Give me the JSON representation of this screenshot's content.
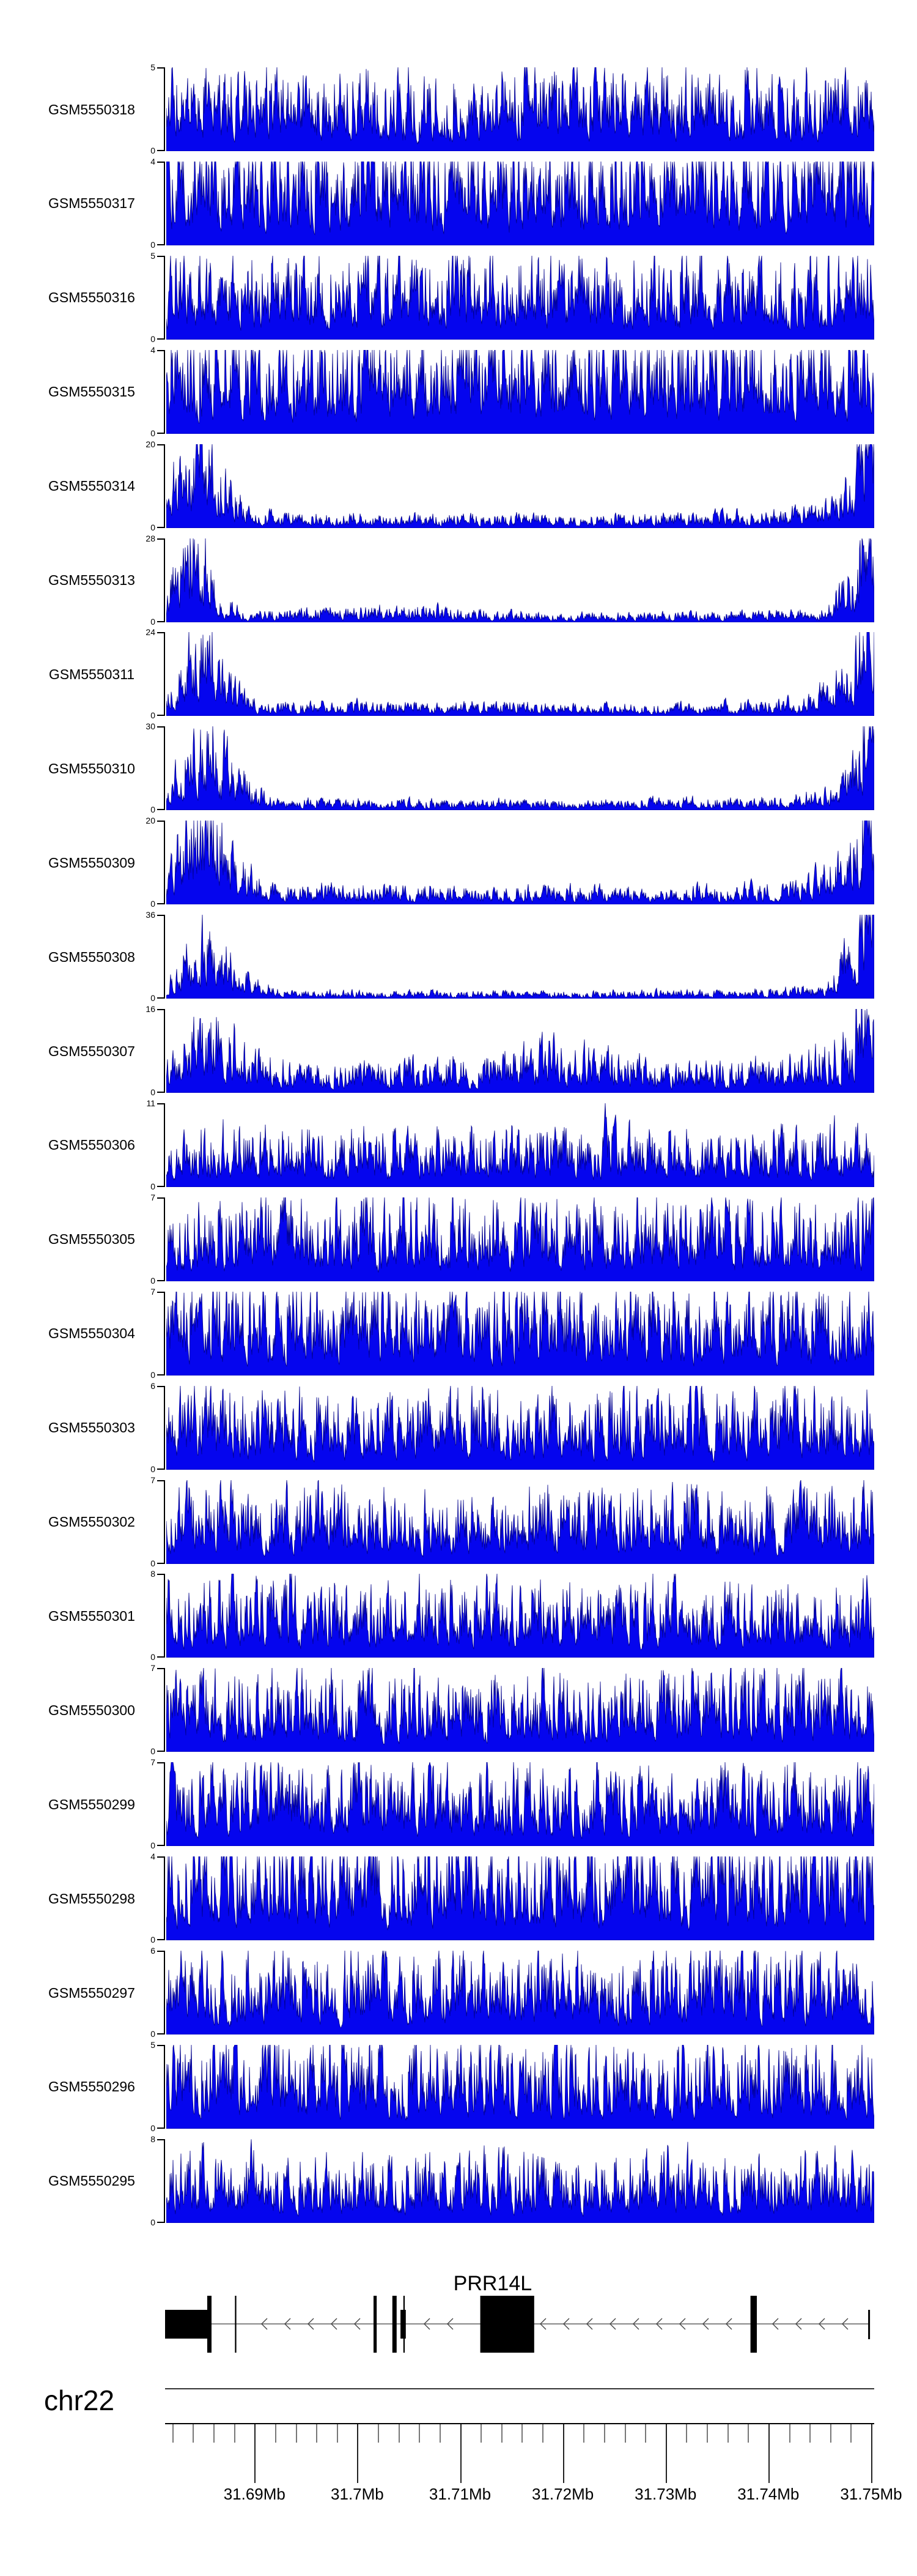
{
  "figure": {
    "background": "#ffffff",
    "colors": {
      "signal_fill": "#0505ee",
      "signal_edge": "#00008b",
      "exon_fill": "#000000",
      "intron_line": "#888888",
      "strand_arrow": "#444444",
      "axis_line": "#000000"
    },
    "y_zero_label": "0"
  },
  "chart_data": {
    "type": "area",
    "description": "Stacked read-coverage histograms per GEO sample over chr22:31.681-31.750Mb with PRR14L gene model and genomic ruler",
    "x_axis": {
      "chromosome": "chr22",
      "start_mb": 31.6813,
      "end_mb": 31.7503,
      "minor_tick_step_mb": 0.002,
      "major_ticks": [
        {
          "mb": 31.69,
          "label": "31.69Mb"
        },
        {
          "mb": 31.7,
          "label": "31.7Mb"
        },
        {
          "mb": 31.71,
          "label": "31.71Mb"
        },
        {
          "mb": 31.72,
          "label": "31.72Mb"
        },
        {
          "mb": 31.73,
          "label": "31.73Mb"
        },
        {
          "mb": 31.74,
          "label": "31.74Mb"
        },
        {
          "mb": 31.75,
          "label": "31.75Mb"
        }
      ]
    },
    "tracks": [
      {
        "name": "GSM5550318",
        "ymin": 0,
        "ymax": 5,
        "pattern": "dense",
        "amp": 0.55,
        "seed": 11,
        "envelope": [
          [
            0,
            1
          ],
          [
            1,
            1
          ]
        ],
        "spikes": [
          [
            0.06,
            0.95
          ],
          [
            0.33,
            0.75
          ],
          [
            0.87,
            0.9
          ]
        ]
      },
      {
        "name": "GSM5550317",
        "ymin": 0,
        "ymax": 4,
        "pattern": "dense",
        "amp": 0.72,
        "seed": 12,
        "envelope": [
          [
            0,
            1
          ],
          [
            1,
            1
          ]
        ],
        "spikes": [
          [
            0.18,
            0.9
          ],
          [
            0.48,
            0.95
          ],
          [
            0.8,
            0.85
          ]
        ]
      },
      {
        "name": "GSM5550316",
        "ymin": 0,
        "ymax": 5,
        "pattern": "dense",
        "amp": 0.58,
        "seed": 13,
        "envelope": [
          [
            0,
            1
          ],
          [
            1,
            1
          ]
        ],
        "spikes": [
          [
            0.025,
            1.0
          ],
          [
            0.35,
            0.8
          ],
          [
            0.97,
            0.95
          ]
        ]
      },
      {
        "name": "GSM5550315",
        "ymin": 0,
        "ymax": 4,
        "pattern": "dense",
        "amp": 0.72,
        "seed": 14,
        "envelope": [
          [
            0,
            1
          ],
          [
            1,
            1
          ]
        ],
        "spikes": [
          [
            0.1,
            0.9
          ],
          [
            0.3,
            0.8
          ],
          [
            0.65,
            0.9
          ]
        ]
      },
      {
        "name": "GSM5550314",
        "ymin": 0,
        "ymax": 20,
        "pattern": "edge",
        "amp": 1,
        "seed": 15,
        "envelope": [
          [
            0,
            0.25
          ],
          [
            0.02,
            0.6
          ],
          [
            0.045,
            0.9
          ],
          [
            0.08,
            0.45
          ],
          [
            0.12,
            0.12
          ],
          [
            0.3,
            0.1
          ],
          [
            0.6,
            0.09
          ],
          [
            0.85,
            0.12
          ],
          [
            0.94,
            0.18
          ],
          [
            0.975,
            0.55
          ],
          [
            0.99,
            1
          ],
          [
            1,
            0.85
          ]
        ],
        "spikes": [
          [
            0.992,
            1.0,
            0.008
          ]
        ]
      },
      {
        "name": "GSM5550313",
        "ymin": 0,
        "ymax": 28,
        "pattern": "edge",
        "amp": 1,
        "seed": 16,
        "envelope": [
          [
            0,
            0.2
          ],
          [
            0.015,
            0.5
          ],
          [
            0.04,
            0.85
          ],
          [
            0.07,
            0.3
          ],
          [
            0.11,
            0.08
          ],
          [
            0.35,
            0.12
          ],
          [
            0.55,
            0.06
          ],
          [
            0.8,
            0.07
          ],
          [
            0.93,
            0.1
          ],
          [
            0.975,
            0.5
          ],
          [
            0.995,
            1
          ],
          [
            1,
            0.9
          ]
        ],
        "spikes": [
          [
            0.993,
            1.0,
            0.008
          ]
        ]
      },
      {
        "name": "GSM5550311",
        "ymin": 0,
        "ymax": 24,
        "pattern": "edge",
        "amp": 1,
        "seed": 17,
        "envelope": [
          [
            0,
            0.15
          ],
          [
            0.03,
            0.55
          ],
          [
            0.05,
            0.8
          ],
          [
            0.09,
            0.35
          ],
          [
            0.13,
            0.1
          ],
          [
            0.4,
            0.1
          ],
          [
            0.7,
            0.08
          ],
          [
            0.9,
            0.12
          ],
          [
            0.97,
            0.4
          ],
          [
            0.99,
            1
          ],
          [
            1,
            0.85
          ]
        ],
        "spikes": [
          [
            0.992,
            1.0,
            0.008
          ]
        ]
      },
      {
        "name": "GSM5550310",
        "ymin": 0,
        "ymax": 30,
        "pattern": "edge",
        "amp": 1,
        "seed": 18,
        "envelope": [
          [
            0,
            0.12
          ],
          [
            0.03,
            0.5
          ],
          [
            0.06,
            0.75
          ],
          [
            0.1,
            0.3
          ],
          [
            0.15,
            0.08
          ],
          [
            0.5,
            0.07
          ],
          [
            0.85,
            0.09
          ],
          [
            0.95,
            0.15
          ],
          [
            0.98,
            0.6
          ],
          [
            0.995,
            1
          ],
          [
            1,
            0.9
          ]
        ],
        "spikes": [
          [
            0.993,
            1.0,
            0.008
          ]
        ]
      },
      {
        "name": "GSM5550309",
        "ymin": 0,
        "ymax": 20,
        "pattern": "edge",
        "amp": 1,
        "seed": 19,
        "envelope": [
          [
            0,
            0.2
          ],
          [
            0.025,
            0.6
          ],
          [
            0.05,
            0.95
          ],
          [
            0.09,
            0.4
          ],
          [
            0.14,
            0.15
          ],
          [
            0.4,
            0.13
          ],
          [
            0.7,
            0.11
          ],
          [
            0.9,
            0.15
          ],
          [
            0.97,
            0.45
          ],
          [
            0.99,
            1
          ],
          [
            1,
            0.85
          ]
        ],
        "spikes": [
          [
            0.992,
            1.0,
            0.008
          ]
        ]
      },
      {
        "name": "GSM5550308",
        "ymin": 0,
        "ymax": 36,
        "pattern": "edge",
        "amp": 1,
        "seed": 20,
        "envelope": [
          [
            0,
            0.1
          ],
          [
            0.03,
            0.4
          ],
          [
            0.06,
            0.6
          ],
          [
            0.1,
            0.25
          ],
          [
            0.16,
            0.06
          ],
          [
            0.5,
            0.05
          ],
          [
            0.8,
            0.06
          ],
          [
            0.93,
            0.09
          ],
          [
            0.975,
            0.5
          ],
          [
            0.995,
            1
          ],
          [
            1,
            0.9
          ]
        ],
        "spikes": [
          [
            0.993,
            1.0,
            0.008
          ]
        ]
      },
      {
        "name": "GSM5550307",
        "ymin": 0,
        "ymax": 16,
        "pattern": "edge",
        "amp": 1,
        "seed": 21,
        "envelope": [
          [
            0,
            0.2
          ],
          [
            0.03,
            0.45
          ],
          [
            0.07,
            0.55
          ],
          [
            0.12,
            0.3
          ],
          [
            0.2,
            0.18
          ],
          [
            0.45,
            0.25
          ],
          [
            0.55,
            0.35
          ],
          [
            0.7,
            0.2
          ],
          [
            0.9,
            0.25
          ],
          [
            0.97,
            0.5
          ],
          [
            0.99,
            1
          ],
          [
            1,
            0.8
          ]
        ],
        "spikes": [
          [
            0.992,
            1.0,
            0.008
          ]
        ]
      },
      {
        "name": "GSM5550306",
        "ymin": 0,
        "ymax": 11,
        "pattern": "dense",
        "amp": 0.4,
        "seed": 22,
        "envelope": [
          [
            0,
            1
          ],
          [
            1,
            1
          ]
        ],
        "spikes": [
          [
            0.62,
            1.0
          ],
          [
            0.77,
            0.6
          ]
        ]
      },
      {
        "name": "GSM5550305",
        "ymin": 0,
        "ymax": 7,
        "pattern": "dense",
        "amp": 0.55,
        "seed": 23,
        "envelope": [
          [
            0,
            1
          ],
          [
            1,
            1
          ]
        ],
        "spikes": [
          [
            0.13,
            0.75
          ],
          [
            0.5,
            0.9
          ]
        ]
      },
      {
        "name": "GSM5550304",
        "ymin": 0,
        "ymax": 7,
        "pattern": "dense",
        "amp": 0.6,
        "seed": 24,
        "envelope": [
          [
            0,
            1
          ],
          [
            1,
            1
          ]
        ],
        "spikes": [
          [
            0.05,
            0.95
          ],
          [
            0.52,
            1.0
          ],
          [
            0.57,
            0.9
          ]
        ]
      },
      {
        "name": "GSM5550303",
        "ymin": 0,
        "ymax": 6,
        "pattern": "dense",
        "amp": 0.55,
        "seed": 25,
        "envelope": [
          [
            0,
            1
          ],
          [
            1,
            1
          ]
        ],
        "spikes": [
          [
            0.04,
            1.0
          ],
          [
            0.14,
            0.9
          ]
        ]
      },
      {
        "name": "GSM5550302",
        "ymin": 0,
        "ymax": 7,
        "pattern": "dense",
        "amp": 0.5,
        "seed": 26,
        "envelope": [
          [
            0,
            1
          ],
          [
            1,
            1
          ]
        ],
        "spikes": [
          [
            0.22,
            0.9
          ],
          [
            0.985,
            1.0
          ]
        ]
      },
      {
        "name": "GSM5550301",
        "ymin": 0,
        "ymax": 8,
        "pattern": "dense",
        "amp": 0.5,
        "seed": 27,
        "envelope": [
          [
            0,
            1
          ],
          [
            1,
            1
          ]
        ],
        "spikes": [
          [
            0.2,
            0.75
          ],
          [
            0.99,
            1.0
          ]
        ]
      },
      {
        "name": "GSM5550300",
        "ymin": 0,
        "ymax": 7,
        "pattern": "dense",
        "amp": 0.55,
        "seed": 28,
        "envelope": [
          [
            0,
            1
          ],
          [
            1,
            1
          ]
        ],
        "spikes": [
          [
            0.02,
            0.85
          ],
          [
            0.35,
            0.95
          ]
        ]
      },
      {
        "name": "GSM5550299",
        "ymin": 0,
        "ymax": 7,
        "pattern": "dense",
        "amp": 0.55,
        "seed": 29,
        "envelope": [
          [
            0,
            1
          ],
          [
            1,
            1
          ]
        ],
        "spikes": [
          [
            0.1,
            0.85
          ],
          [
            0.75,
            0.9
          ]
        ]
      },
      {
        "name": "GSM5550298",
        "ymin": 0,
        "ymax": 4,
        "pattern": "dense",
        "amp": 0.72,
        "seed": 30,
        "envelope": [
          [
            0,
            1
          ],
          [
            1,
            1
          ]
        ],
        "spikes": [
          [
            0.3,
            0.85
          ]
        ]
      },
      {
        "name": "GSM5550297",
        "ymin": 0,
        "ymax": 6,
        "pattern": "dense",
        "amp": 0.55,
        "seed": 31,
        "envelope": [
          [
            0,
            1
          ],
          [
            1,
            1
          ]
        ],
        "spikes": [
          [
            0.05,
            1.0
          ],
          [
            0.33,
            0.95
          ],
          [
            0.56,
            0.95
          ],
          [
            0.78,
            0.9
          ]
        ]
      },
      {
        "name": "GSM5550296",
        "ymin": 0,
        "ymax": 5,
        "pattern": "dense",
        "amp": 0.6,
        "seed": 32,
        "envelope": [
          [
            0,
            1
          ],
          [
            1,
            1
          ]
        ],
        "spikes": [
          [
            0.08,
            1.0
          ],
          [
            0.5,
            0.85
          ]
        ]
      },
      {
        "name": "GSM5550295",
        "ymin": 0,
        "ymax": 8,
        "pattern": "dense",
        "amp": 0.45,
        "seed": 33,
        "envelope": [
          [
            0,
            1
          ],
          [
            1,
            1
          ]
        ],
        "spikes": [
          [
            0.12,
            1.0
          ],
          [
            0.55,
            0.75
          ],
          [
            0.97,
            0.85
          ]
        ]
      }
    ],
    "gene_track": {
      "gene": "PRR14L",
      "strand": "-",
      "label_frac": 0.462,
      "exons": [
        {
          "start": 0.0,
          "end": 0.062,
          "height": "half"
        },
        {
          "start": 0.0595,
          "end": 0.0655,
          "height": "full"
        },
        {
          "start": 0.0985,
          "end": 0.1005,
          "height": "full"
        },
        {
          "start": 0.294,
          "end": 0.2985,
          "height": "full"
        },
        {
          "start": 0.3205,
          "end": 0.3265,
          "height": "full"
        },
        {
          "start": 0.332,
          "end": 0.3395,
          "height": "half"
        },
        {
          "start": 0.336,
          "end": 0.338,
          "height": "full"
        },
        {
          "start": 0.4445,
          "end": 0.5205,
          "height": "full"
        },
        {
          "start": 0.8255,
          "end": 0.8345,
          "height": "full"
        },
        {
          "start": 0.9915,
          "end": 0.994,
          "height": "end"
        }
      ]
    }
  }
}
